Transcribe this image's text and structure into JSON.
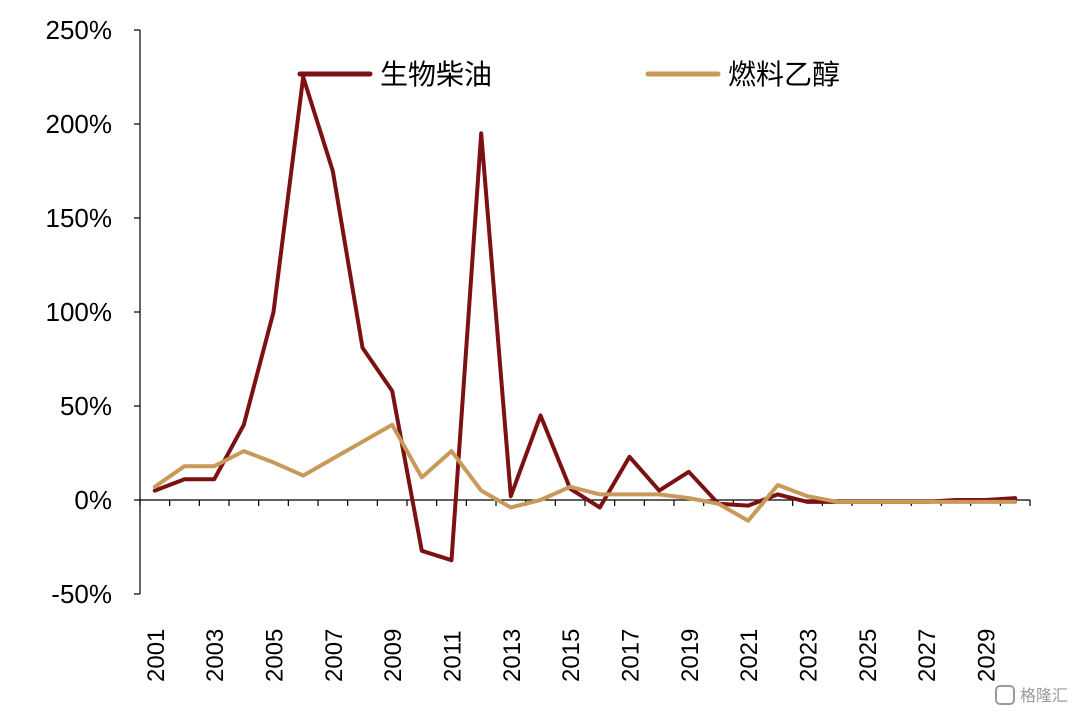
{
  "chart_data": {
    "type": "line",
    "title": "",
    "xlabel": "",
    "ylabel": "",
    "ylim": [
      -50,
      250
    ],
    "yticks": [
      -50,
      0,
      50,
      100,
      150,
      200,
      250
    ],
    "ytick_labels": [
      "-50%",
      "0%",
      "50%",
      "100%",
      "150%",
      "200%",
      "250%"
    ],
    "x": [
      2001,
      2002,
      2003,
      2004,
      2005,
      2006,
      2007,
      2008,
      2009,
      2010,
      2011,
      2012,
      2013,
      2014,
      2015,
      2016,
      2017,
      2018,
      2019,
      2020,
      2021,
      2022,
      2023,
      2024,
      2025,
      2026,
      2027,
      2028,
      2029,
      2030
    ],
    "xtick_labels": [
      "2001",
      "2003",
      "2005",
      "2007",
      "2009",
      "2011",
      "2013",
      "2015",
      "2017",
      "2019",
      "2021",
      "2023",
      "2025",
      "2027",
      "2029"
    ],
    "grid": false,
    "legend_position": "top",
    "series": [
      {
        "name": "生物柴油",
        "color": "#7b1113",
        "values": [
          5,
          11,
          11,
          40,
          100,
          225,
          175,
          81,
          58,
          -27,
          -32,
          195,
          2,
          45,
          6,
          -4,
          23,
          5,
          15,
          -2,
          -3,
          3,
          -1,
          -1,
          -1,
          -1,
          -1,
          0,
          0,
          1
        ]
      },
      {
        "name": "燃料乙醇",
        "color": "#c9995a",
        "values": [
          7,
          18,
          18,
          26,
          20,
          13,
          22,
          31,
          40,
          12,
          26,
          5,
          -4,
          0,
          7,
          3,
          3,
          3,
          1,
          -2,
          -11,
          8,
          2,
          -1,
          -1,
          -1,
          -1,
          -1,
          -1,
          -1
        ]
      }
    ]
  },
  "watermark": "格隆汇"
}
